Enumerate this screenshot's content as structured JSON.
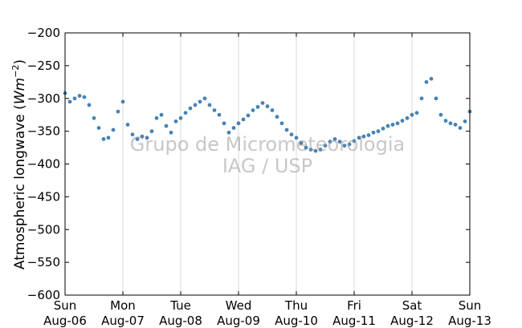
{
  "chart_data": {
    "type": "scatter",
    "title": "",
    "ylabel": "Atmospheric longwave",
    "ylabel_unit": "(Wm−2)",
    "ylabel_unit_parts": {
      "open": "(",
      "base": "Wm",
      "sup": "−2",
      "close": ")"
    },
    "xlabel": "",
    "ylim": [
      -600,
      -200
    ],
    "yticks": [
      -200,
      -250,
      -300,
      -350,
      -400,
      -450,
      -500,
      -550,
      -600
    ],
    "ytick_labels": [
      "−200",
      "−250",
      "−300",
      "−350",
      "−400",
      "−450",
      "−500",
      "−550",
      "−600"
    ],
    "xlim": [
      0,
      7
    ],
    "xticks": [
      0,
      1,
      2,
      3,
      4,
      5,
      6,
      7
    ],
    "xtick_labels": [
      [
        "Sun",
        "Aug-06"
      ],
      [
        "Mon",
        "Aug-07"
      ],
      [
        "Tue",
        "Aug-08"
      ],
      [
        "Wed",
        "Aug-09"
      ],
      [
        "Thu",
        "Aug-10"
      ],
      [
        "Fri",
        "Aug-11"
      ],
      [
        "Sat",
        "Aug-12"
      ],
      [
        "Sun",
        "Aug-13"
      ]
    ],
    "grid": "vertical",
    "marker_color": "#4682b4",
    "watermark": [
      "Grupo de Micrometeorologia",
      "IAG / USP"
    ],
    "series": [
      {
        "x": [
          "Aug-06 00:00",
          "Aug-06 02:00",
          "Aug-06 04:00",
          "Aug-06 06:00",
          "Aug-06 08:00",
          "Aug-06 10:00",
          "Aug-06 12:00",
          "Aug-06 14:00",
          "Aug-06 16:00",
          "Aug-06 18:00",
          "Aug-06 20:00",
          "Aug-06 22:00",
          "Aug-07 00:00",
          "Aug-07 02:00",
          "Aug-07 04:00",
          "Aug-07 06:00",
          "Aug-07 08:00",
          "Aug-07 10:00",
          "Aug-07 12:00",
          "Aug-07 14:00",
          "Aug-07 16:00",
          "Aug-07 18:00",
          "Aug-07 20:00",
          "Aug-07 22:00",
          "Aug-08 00:00",
          "Aug-08 02:00",
          "Aug-08 04:00",
          "Aug-08 06:00",
          "Aug-08 08:00",
          "Aug-08 10:00",
          "Aug-08 12:00",
          "Aug-08 14:00",
          "Aug-08 16:00",
          "Aug-08 18:00",
          "Aug-08 20:00",
          "Aug-08 22:00",
          "Aug-09 00:00",
          "Aug-09 02:00",
          "Aug-09 04:00",
          "Aug-09 06:00",
          "Aug-09 08:00",
          "Aug-09 10:00",
          "Aug-09 12:00",
          "Aug-09 14:00",
          "Aug-09 16:00",
          "Aug-09 18:00",
          "Aug-09 20:00",
          "Aug-09 22:00",
          "Aug-10 00:00",
          "Aug-10 02:00",
          "Aug-10 04:00",
          "Aug-10 06:00",
          "Aug-10 08:00",
          "Aug-10 10:00",
          "Aug-10 12:00",
          "Aug-10 14:00",
          "Aug-10 16:00",
          "Aug-10 18:00",
          "Aug-10 20:00",
          "Aug-10 22:00",
          "Aug-11 00:00",
          "Aug-11 02:00",
          "Aug-11 04:00",
          "Aug-11 06:00",
          "Aug-11 08:00",
          "Aug-11 10:00",
          "Aug-11 12:00",
          "Aug-11 14:00",
          "Aug-11 16:00",
          "Aug-11 18:00",
          "Aug-11 20:00",
          "Aug-11 22:00",
          "Aug-12 00:00",
          "Aug-12 02:00",
          "Aug-12 04:00",
          "Aug-12 06:00",
          "Aug-12 08:00",
          "Aug-12 10:00",
          "Aug-12 12:00",
          "Aug-12 14:00",
          "Aug-12 16:00",
          "Aug-12 18:00",
          "Aug-12 20:00",
          "Aug-12 22:00",
          "Aug-13 00:00"
        ],
        "y": [
          -292,
          -305,
          -300,
          -296,
          -298,
          -310,
          -330,
          -345,
          -362,
          -360,
          -348,
          -320,
          -305,
          -340,
          -355,
          -362,
          -358,
          -360,
          -350,
          -330,
          -325,
          -342,
          -352,
          -335,
          -330,
          -322,
          -315,
          -310,
          -305,
          -300,
          -310,
          -318,
          -325,
          -338,
          -352,
          -345,
          -338,
          -332,
          -326,
          -318,
          -313,
          -307,
          -312,
          -318,
          -328,
          -338,
          -348,
          -355,
          -360,
          -368,
          -375,
          -378,
          -380,
          -378,
          -372,
          -366,
          -362,
          -366,
          -372,
          -370,
          -365,
          -360,
          -358,
          -356,
          -352,
          -350,
          -346,
          -342,
          -340,
          -338,
          -334,
          -330,
          -325,
          -322,
          -300,
          -275,
          -270,
          -300,
          -325,
          -334,
          -338,
          -340,
          -345,
          -335,
          -320
        ]
      }
    ]
  }
}
